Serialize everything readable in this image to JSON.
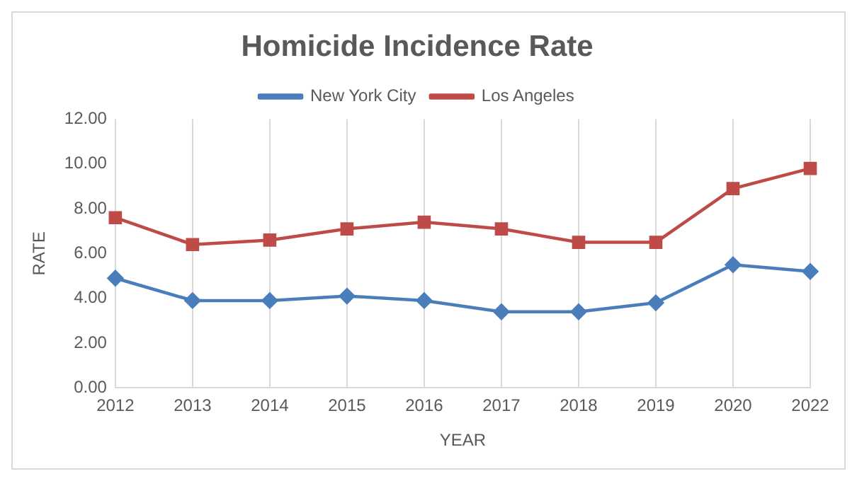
{
  "chart_data": {
    "type": "line",
    "title": "Homicide Incidence Rate",
    "xlabel": "YEAR",
    "ylabel": "RATE",
    "categories": [
      "2012",
      "2013",
      "2014",
      "2015",
      "2016",
      "2017",
      "2018",
      "2019",
      "2020",
      "2022"
    ],
    "series": [
      {
        "name": "New York City",
        "color": "#4a7ebb",
        "marker": "diamond",
        "values": [
          4.9,
          3.9,
          3.9,
          4.1,
          3.9,
          3.4,
          3.4,
          3.8,
          5.5,
          5.2
        ]
      },
      {
        "name": "Los Angeles",
        "color": "#be4b48",
        "marker": "square",
        "values": [
          7.6,
          6.4,
          6.6,
          7.1,
          7.4,
          7.1,
          6.5,
          6.5,
          8.9,
          9.8
        ]
      }
    ],
    "ylim": [
      0,
      12
    ],
    "yticks": [
      {
        "value": 0,
        "label": "0.00"
      },
      {
        "value": 2,
        "label": "2.00"
      },
      {
        "value": 4,
        "label": "4.00"
      },
      {
        "value": 6,
        "label": "6.00"
      },
      {
        "value": 8,
        "label": "8.00"
      },
      {
        "value": 10,
        "label": "10.00"
      },
      {
        "value": 12,
        "label": "12.00"
      }
    ],
    "grid": "x",
    "legend": "top",
    "line_style": "solid"
  }
}
